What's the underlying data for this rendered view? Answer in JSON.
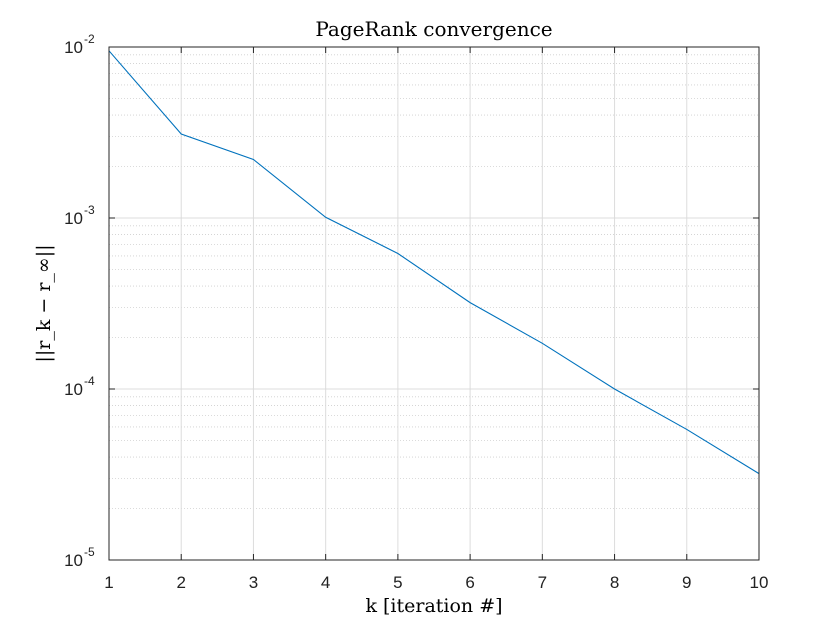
{
  "chart_data": {
    "type": "line",
    "title": "PageRank convergence",
    "xlabel": "k [iteration #]",
    "ylabel": "||r_k − r_∞||",
    "x": [
      1,
      2,
      3,
      4,
      5,
      6,
      7,
      8,
      9,
      10
    ],
    "series": [
      {
        "values": [
          0.0095,
          0.0031,
          0.0022,
          0.00101,
          0.00062,
          0.00032,
          0.000185,
          0.0001,
          5.8e-05,
          3.2e-05
        ]
      }
    ],
    "xlim": [
      1,
      10
    ],
    "ylim": [
      1e-05,
      0.01
    ],
    "yscale": "log",
    "xticks": [
      1,
      2,
      3,
      4,
      5,
      6,
      7,
      8,
      9,
      10
    ],
    "yticks": [
      {
        "base": "10",
        "exp": "-5",
        "value": 1e-05
      },
      {
        "base": "10",
        "exp": "-4",
        "value": 0.0001
      },
      {
        "base": "10",
        "exp": "-3",
        "value": 0.001
      },
      {
        "base": "10",
        "exp": "-2",
        "value": 0.01
      }
    ],
    "grid": true,
    "minor_grid": true,
    "line_color": "#0072BD"
  }
}
